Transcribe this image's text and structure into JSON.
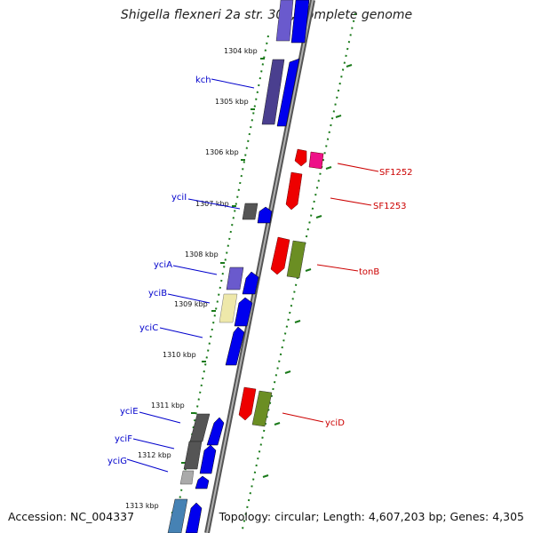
{
  "title": "Shigella flexneri 2a str. 301, complete genome",
  "footer": {
    "accession": "Accession: NC_004337",
    "topology": "Topology: circular; Length: 4,607,203 bp; Genes: 4,305"
  },
  "scale_labels": [
    "1304 kbp",
    "1305 kbp",
    "1306 kbp",
    "1307 kbp",
    "1308 kbp",
    "1309 kbp",
    "1310 kbp",
    "1311 kbp",
    "1312 kbp",
    "1313 kbp"
  ],
  "gene_labels": {
    "left": [
      "kch",
      "yciI",
      "yciA",
      "yciB",
      "yciC",
      "yciE",
      "yciF",
      "yciG"
    ],
    "right": [
      "SF1252",
      "SF1253",
      "tonB",
      "yciD"
    ]
  },
  "colors": {
    "left_label": "#0000cc",
    "right_label": "#cc0000",
    "backbone": "#888888",
    "tick": "#1a7a1a",
    "cds_blue": "#0000ee",
    "cds_red": "#ee0000",
    "magenta": "#ee1188",
    "olive": "#6b8e23",
    "slate": "#4a3f8f",
    "dark_gray": "#555555",
    "light_gray": "#aaaaaa",
    "khaki": "#eee8aa",
    "steel": "#4682b4"
  }
}
